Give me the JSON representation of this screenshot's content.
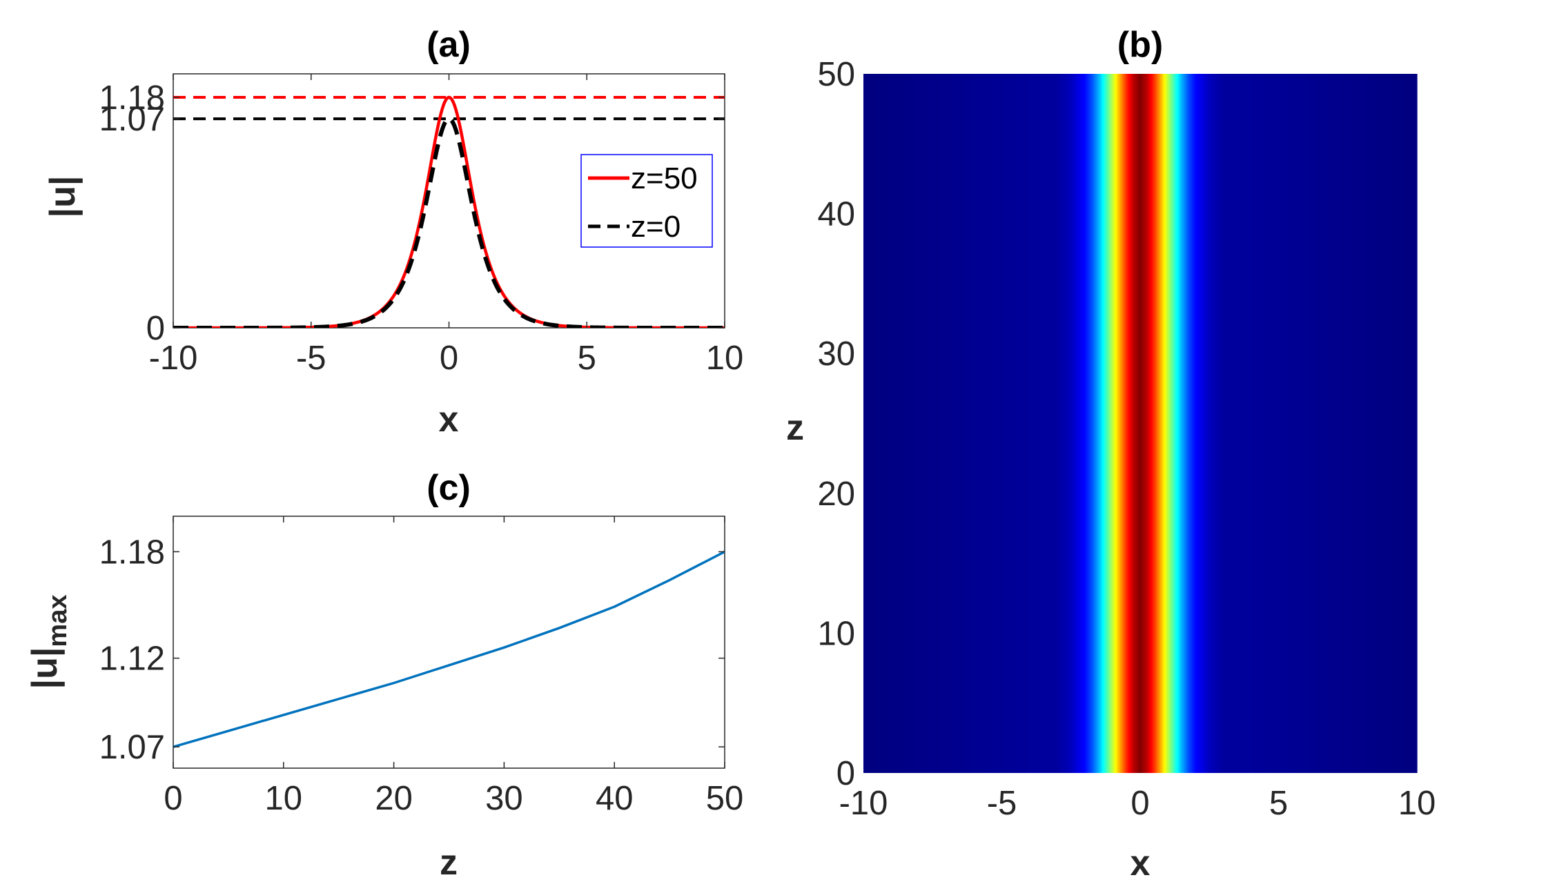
{
  "chart_data": [
    {
      "panel": "(a)",
      "type": "line",
      "title": "(a)",
      "xlabel": "x",
      "ylabel": "|u|",
      "xlim": [
        -10,
        10
      ],
      "ylim": [
        0,
        1.3
      ],
      "xticks": [
        "-10",
        "-5",
        "0",
        "5",
        "10"
      ],
      "xtick_values": [
        -10,
        -5,
        0,
        5,
        10
      ],
      "yticks": [
        "0",
        "1.07",
        "1.18"
      ],
      "ytick_values": [
        0,
        1.07,
        1.18
      ],
      "legend_position": "upper-right",
      "series": [
        {
          "name": "z=50",
          "color": "#ff0000",
          "style": "solid",
          "amplitude": 1.18,
          "x": [
            -10,
            -8,
            -6,
            -4,
            -3,
            -2,
            -1.5,
            -1,
            -0.5,
            0,
            0.5,
            1,
            1.5,
            2,
            3,
            4,
            6,
            8,
            10
          ],
          "y": [
            0,
            0.0007,
            0.005,
            0.04,
            0.11,
            0.29,
            0.46,
            0.69,
            0.99,
            1.18,
            0.99,
            0.69,
            0.46,
            0.29,
            0.11,
            0.04,
            0.005,
            0.0007,
            0
          ]
        },
        {
          "name": "z=0",
          "color": "#000000",
          "style": "dashed",
          "amplitude": 1.07,
          "x": [
            -10,
            -8,
            -6,
            -4,
            -3,
            -2,
            -1.5,
            -1,
            -0.5,
            0,
            0.5,
            1,
            1.5,
            2,
            3,
            4,
            6,
            8,
            10
          ],
          "y": [
            0,
            0.0007,
            0.005,
            0.04,
            0.11,
            0.28,
            0.44,
            0.65,
            0.91,
            1.07,
            0.91,
            0.65,
            0.44,
            0.28,
            0.11,
            0.04,
            0.005,
            0.0007,
            0
          ]
        }
      ],
      "reference_lines": [
        {
          "y": 1.18,
          "color": "#ff0000",
          "style": "dashed"
        },
        {
          "y": 1.07,
          "color": "#000000",
          "style": "dashed"
        }
      ]
    },
    {
      "panel": "(b)",
      "type": "heatmap",
      "title": "(b)",
      "xlabel": "x",
      "ylabel": "z",
      "xlim": [
        -10,
        10
      ],
      "ylim": [
        0,
        50
      ],
      "xticks": [
        "-10",
        "-5",
        "0",
        "5",
        "10"
      ],
      "xtick_values": [
        -10,
        -5,
        0,
        5,
        10
      ],
      "yticks": [
        "0",
        "10",
        "20",
        "30",
        "40",
        "50"
      ],
      "ytick_values": [
        0,
        10,
        20,
        30,
        40,
        50
      ],
      "colormap": "jet",
      "profile_x": [
        -10,
        -3,
        -2.5,
        -2,
        -1.75,
        -1.5,
        -1.25,
        -1,
        -0.75,
        -0.5,
        -0.25,
        0,
        0.25,
        0.5,
        0.75,
        1,
        1.25,
        1.5,
        1.75,
        2,
        2.5,
        3,
        10
      ],
      "profile_value": [
        0,
        0.03,
        0.06,
        0.13,
        0.2,
        0.3,
        0.42,
        0.56,
        0.7,
        0.83,
        0.94,
        1,
        0.94,
        0.83,
        0.7,
        0.56,
        0.42,
        0.3,
        0.2,
        0.13,
        0.06,
        0.03,
        0
      ]
    },
    {
      "panel": "(c)",
      "type": "line",
      "title": "(c)",
      "xlabel": "z",
      "ylabel": "|u|",
      "ylabel_subscript": "max",
      "xlim": [
        0,
        50
      ],
      "ylim": [
        1.058,
        1.2
      ],
      "xticks": [
        "0",
        "10",
        "20",
        "30",
        "40",
        "50"
      ],
      "xtick_values": [
        0,
        10,
        20,
        30,
        40,
        50
      ],
      "yticks": [
        "1.07",
        "1.12",
        "1.18"
      ],
      "ytick_values": [
        1.07,
        1.12,
        1.18
      ],
      "series": [
        {
          "color": "#0072bd",
          "x": [
            0,
            5,
            10,
            15,
            20,
            25,
            30,
            35,
            40,
            45,
            50
          ],
          "y": [
            1.07,
            1.079,
            1.088,
            1.097,
            1.106,
            1.116,
            1.126,
            1.137,
            1.149,
            1.164,
            1.18
          ]
        }
      ]
    }
  ]
}
